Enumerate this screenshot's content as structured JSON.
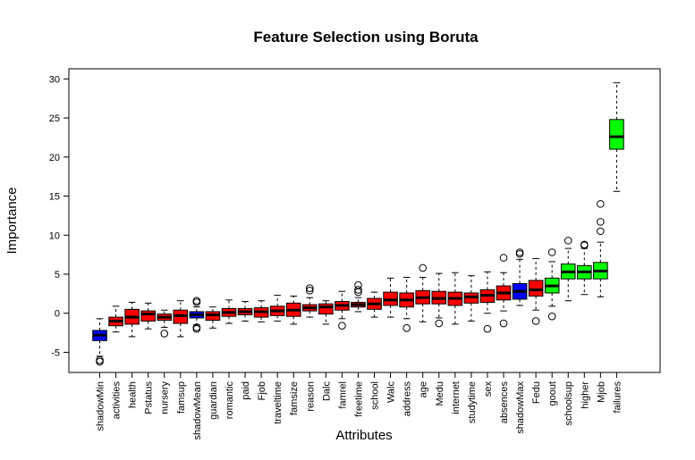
{
  "chart_data": {
    "type": "box",
    "title": "Feature Selection using Boruta",
    "xlabel": "Attributes",
    "ylabel": "Importance",
    "ylim": [
      -6.5,
      33
    ],
    "yticks": [
      -5,
      0,
      5,
      10,
      15,
      20,
      25,
      30
    ],
    "grid": false,
    "legend": "none",
    "category_colors": {
      "shadow": "#0000ff",
      "rejected": "#ff0000",
      "confirmed": "#00ff00"
    },
    "boxes": [
      {
        "name": "shadowMin",
        "status": "shadow",
        "wlo": -5.5,
        "q1": -3.5,
        "med": -2.8,
        "q3": -2.2,
        "whi": -0.7,
        "out": [
          -6.0,
          -6.2
        ]
      },
      {
        "name": "activities",
        "status": "rejected",
        "wlo": -2.4,
        "q1": -1.6,
        "med": -1.0,
        "q3": -0.5,
        "whi": 0.9,
        "out": []
      },
      {
        "name": "health",
        "status": "rejected",
        "wlo": -3.0,
        "q1": -1.4,
        "med": -0.5,
        "q3": 0.5,
        "whi": 1.4,
        "out": []
      },
      {
        "name": "Pstatus",
        "status": "rejected",
        "wlo": -2.0,
        "q1": -1.0,
        "med": -0.1,
        "q3": 0.3,
        "whi": 1.3,
        "out": []
      },
      {
        "name": "nursery",
        "status": "rejected",
        "wlo": -1.8,
        "q1": -0.9,
        "med": -0.5,
        "q3": -0.1,
        "whi": 0.4,
        "out": [
          -2.6
        ]
      },
      {
        "name": "famsup",
        "status": "rejected",
        "wlo": -3.0,
        "q1": -1.3,
        "med": -0.3,
        "q3": 0.4,
        "whi": 1.6,
        "out": []
      },
      {
        "name": "shadowMean",
        "status": "shadow",
        "wlo": -1.5,
        "q1": -0.6,
        "med": -0.2,
        "q3": 0.2,
        "whi": 0.8,
        "out": [
          1.6,
          1.4,
          -1.8,
          -2.0
        ]
      },
      {
        "name": "guardian",
        "status": "rejected",
        "wlo": -1.9,
        "q1": -0.9,
        "med": -0.2,
        "q3": 0.2,
        "whi": 0.8,
        "out": []
      },
      {
        "name": "romantic",
        "status": "rejected",
        "wlo": -1.3,
        "q1": -0.4,
        "med": 0.1,
        "q3": 0.6,
        "whi": 1.7,
        "out": []
      },
      {
        "name": "paid",
        "status": "rejected",
        "wlo": -1.0,
        "q1": -0.2,
        "med": 0.2,
        "q3": 0.6,
        "whi": 1.5,
        "out": []
      },
      {
        "name": "Fjob",
        "status": "rejected",
        "wlo": -1.1,
        "q1": -0.5,
        "med": 0.2,
        "q3": 0.7,
        "whi": 1.6,
        "out": []
      },
      {
        "name": "traveltime",
        "status": "rejected",
        "wlo": -1.0,
        "q1": -0.3,
        "med": 0.3,
        "q3": 0.9,
        "whi": 2.3,
        "out": []
      },
      {
        "name": "famsize",
        "status": "rejected",
        "wlo": -1.4,
        "q1": -0.4,
        "med": 0.4,
        "q3": 1.3,
        "whi": 2.2,
        "out": []
      },
      {
        "name": "reason",
        "status": "rejected",
        "wlo": -0.5,
        "q1": 0.3,
        "med": 0.7,
        "q3": 1.1,
        "whi": 2.0,
        "out": [
          3.2,
          2.9
        ]
      },
      {
        "name": "Dalc",
        "status": "rejected",
        "wlo": -1.4,
        "q1": -0.1,
        "med": 0.8,
        "q3": 1.2,
        "whi": 1.6,
        "out": []
      },
      {
        "name": "famrel",
        "status": "rejected",
        "wlo": -0.7,
        "q1": 0.4,
        "med": 1.0,
        "q3": 1.5,
        "whi": 2.8,
        "out": [
          -1.6
        ]
      },
      {
        "name": "freetime",
        "status": "rejected",
        "wlo": 0.2,
        "q1": 0.8,
        "med": 1.1,
        "q3": 1.4,
        "whi": 2.0,
        "out": [
          3.6,
          3.0,
          2.7
        ]
      },
      {
        "name": "school",
        "status": "rejected",
        "wlo": -0.5,
        "q1": 0.5,
        "med": 1.2,
        "q3": 1.9,
        "whi": 2.7,
        "out": []
      },
      {
        "name": "Walc",
        "status": "rejected",
        "wlo": -0.5,
        "q1": 1.0,
        "med": 1.7,
        "q3": 2.7,
        "whi": 4.5,
        "out": []
      },
      {
        "name": "address",
        "status": "rejected",
        "wlo": -0.7,
        "q1": 0.8,
        "med": 1.7,
        "q3": 2.6,
        "whi": 4.6,
        "out": [
          -1.9
        ]
      },
      {
        "name": "age",
        "status": "rejected",
        "wlo": -1.1,
        "q1": 1.2,
        "med": 2.0,
        "q3": 2.9,
        "whi": 4.6,
        "out": [
          5.8
        ]
      },
      {
        "name": "Medu",
        "status": "rejected",
        "wlo": -0.6,
        "q1": 1.2,
        "med": 1.9,
        "q3": 2.8,
        "whi": 5.1,
        "out": [
          -1.3
        ]
      },
      {
        "name": "internet",
        "status": "rejected",
        "wlo": -1.4,
        "q1": 1.0,
        "med": 1.9,
        "q3": 2.7,
        "whi": 5.2,
        "out": []
      },
      {
        "name": "studytime",
        "status": "rejected",
        "wlo": -1.0,
        "q1": 1.3,
        "med": 2.1,
        "q3": 2.6,
        "whi": 4.8,
        "out": []
      },
      {
        "name": "sex",
        "status": "rejected",
        "wlo": 0.0,
        "q1": 1.4,
        "med": 2.3,
        "q3": 3.0,
        "whi": 5.3,
        "out": [
          -2.0
        ]
      },
      {
        "name": "absences",
        "status": "rejected",
        "wlo": 0.3,
        "q1": 1.7,
        "med": 2.6,
        "q3": 3.5,
        "whi": 5.2,
        "out": [
          7.1,
          -1.3
        ]
      },
      {
        "name": "shadowMax",
        "status": "shadow",
        "wlo": 1.0,
        "q1": 1.8,
        "med": 2.8,
        "q3": 3.8,
        "whi": 6.9,
        "out": [
          7.8,
          7.6
        ]
      },
      {
        "name": "Fedu",
        "status": "rejected",
        "wlo": 0.4,
        "q1": 2.2,
        "med": 3.0,
        "q3": 4.2,
        "whi": 7.0,
        "out": [
          -1.0
        ]
      },
      {
        "name": "goout",
        "status": "confirmed",
        "wlo": 0.9,
        "q1": 2.6,
        "med": 3.5,
        "q3": 4.5,
        "whi": 6.6,
        "out": [
          7.8,
          -0.4
        ]
      },
      {
        "name": "schoolsup",
        "status": "confirmed",
        "wlo": 1.6,
        "q1": 4.4,
        "med": 5.3,
        "q3": 6.3,
        "whi": 8.3,
        "out": [
          9.3
        ]
      },
      {
        "name": "higher",
        "status": "confirmed",
        "wlo": 2.4,
        "q1": 4.4,
        "med": 5.3,
        "q3": 6.1,
        "whi": 8.3,
        "out": [
          8.8,
          8.7
        ]
      },
      {
        "name": "Mjob",
        "status": "confirmed",
        "wlo": 2.1,
        "q1": 4.4,
        "med": 5.4,
        "q3": 6.5,
        "whi": 9.1,
        "out": [
          14.0,
          11.7,
          10.5
        ]
      },
      {
        "name": "failures",
        "status": "confirmed",
        "wlo": 15.6,
        "q1": 21.0,
        "med": 22.6,
        "q3": 24.8,
        "whi": 29.5,
        "out": []
      }
    ]
  }
}
